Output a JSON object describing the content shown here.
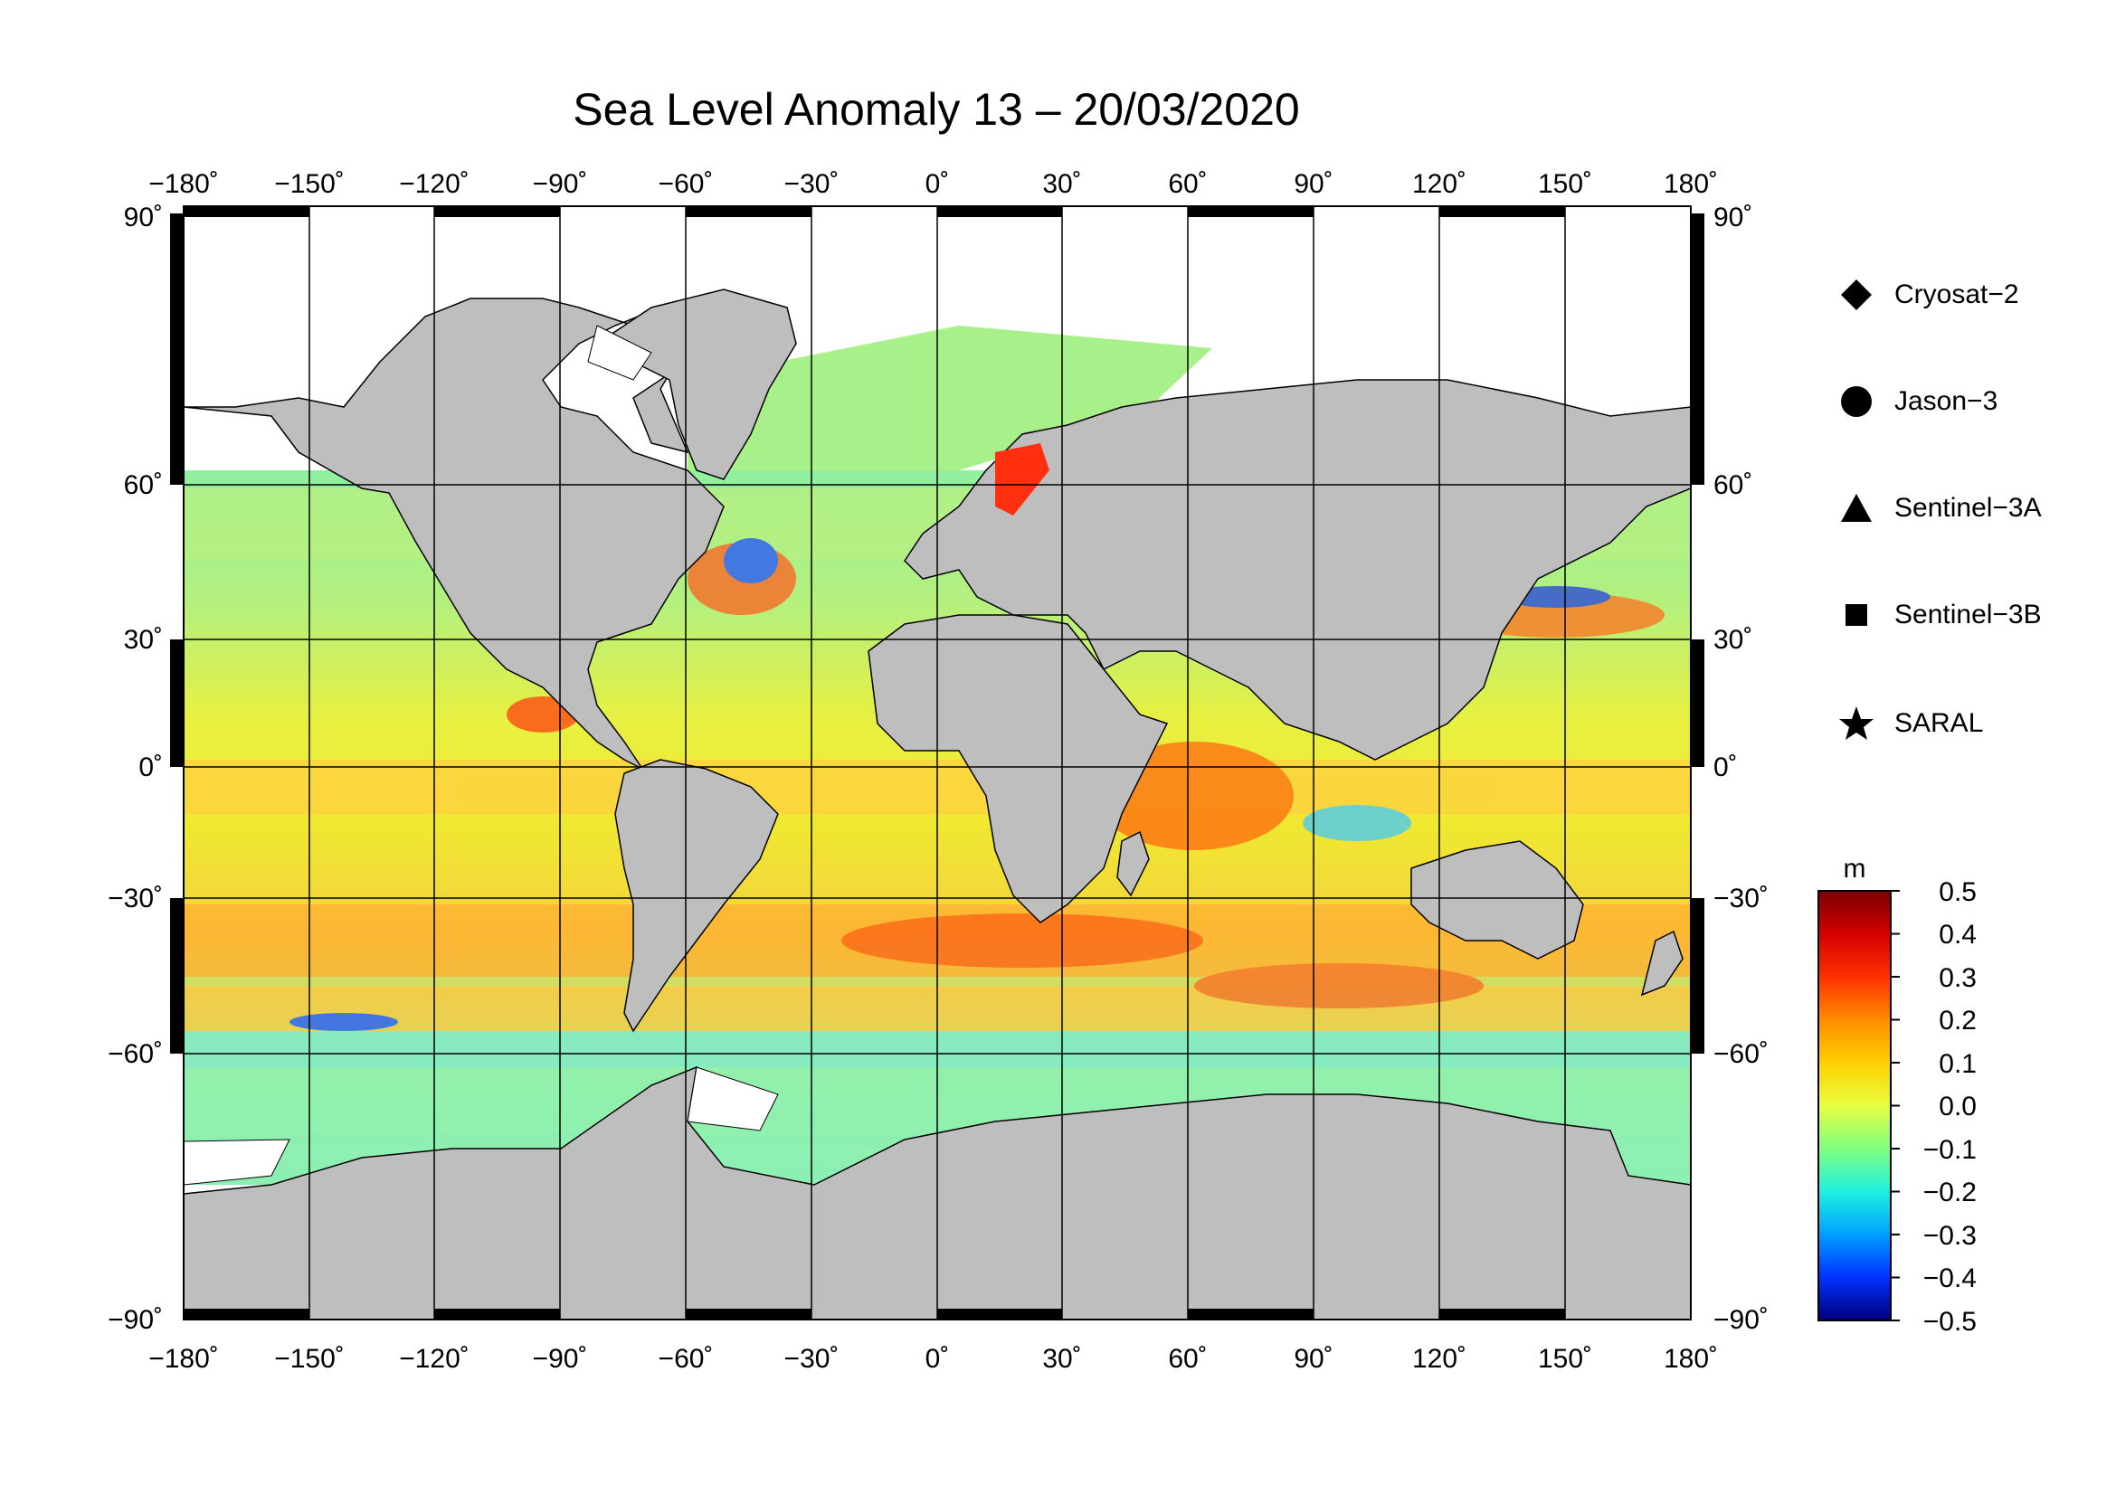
{
  "title": "Sea Level Anomaly 13 – 20/03/2020",
  "lon_ticks": [
    "−180˚",
    "−150˚",
    "−120˚",
    "−90˚",
    "−60˚",
    "−30˚",
    "0˚",
    "30˚",
    "60˚",
    "90˚",
    "120˚",
    "150˚",
    "180˚"
  ],
  "lat_ticks": [
    "90˚",
    "60˚",
    "30˚",
    "0˚",
    "−30˚",
    "−60˚",
    "−90˚"
  ],
  "legend": {
    "items": [
      {
        "label": "Cryosat−2",
        "icon": "diamond-icon"
      },
      {
        "label": "Jason−3",
        "icon": "circle-icon"
      },
      {
        "label": "Sentinel−3A",
        "icon": "triangle-icon"
      },
      {
        "label": "Sentinel−3B",
        "icon": "square-icon"
      },
      {
        "label": "SARAL",
        "icon": "star-icon"
      }
    ]
  },
  "colorbar": {
    "unit": "m",
    "ticks": [
      "0.5",
      "0.4",
      "0.3",
      "0.2",
      "0.1",
      "0.0",
      "−0.1",
      "−0.2",
      "−0.3",
      "−0.4",
      "−0.5"
    ],
    "colors": [
      "#7a0000",
      "#d40000",
      "#ff3000",
      "#ff8c00",
      "#ffd000",
      "#e8ff40",
      "#80ff80",
      "#20f0e0",
      "#00a0ff",
      "#0030ff",
      "#00007a"
    ]
  },
  "colors": {
    "land": "#bebebe",
    "ice": "#ffffff",
    "ocean_base": "#c8f050"
  }
}
